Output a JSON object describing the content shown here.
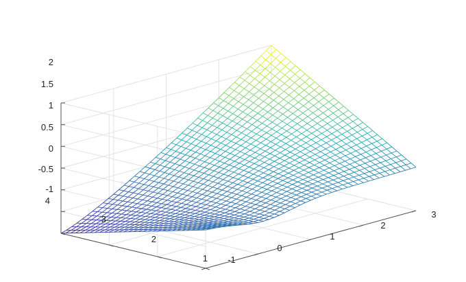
{
  "chart_data": {
    "type": "surface",
    "title": "",
    "xlabel": "",
    "ylabel": "",
    "zlabel": "",
    "x_ticks": [
      -1,
      0,
      1,
      2,
      3
    ],
    "y_ticks": [
      1,
      2,
      3,
      4
    ],
    "z_ticks": [
      -1,
      -0.5,
      0,
      0.5,
      1,
      1.5,
      2
    ],
    "x_tick_labels": [
      "-1",
      "0",
      "1",
      "2",
      "3"
    ],
    "y_tick_labels": [
      "1",
      "2",
      "3",
      "4"
    ],
    "z_tick_labels": [
      "-1",
      "-0.5",
      "0",
      "0.5",
      "1",
      "1.5",
      "2"
    ],
    "xlim": [
      -1,
      3
    ],
    "ylim": [
      1,
      4
    ],
    "zlim": [
      -1,
      2
    ],
    "grid": true,
    "colormap": "parula",
    "mesh_resolution": {
      "x": 40,
      "y": 30
    },
    "corner_values": [
      {
        "x": -1,
        "y": 1,
        "z": -0.1
      },
      {
        "x": 3,
        "y": 1,
        "z": 0.0
      },
      {
        "x": 3,
        "y": 4,
        "z": 2.0
      },
      {
        "x": -1,
        "y": 4,
        "z": -1.0
      }
    ],
    "colors": {
      "low": "#3e26a8",
      "mid": "#1fb0b5",
      "high": "#f9fb15"
    }
  }
}
